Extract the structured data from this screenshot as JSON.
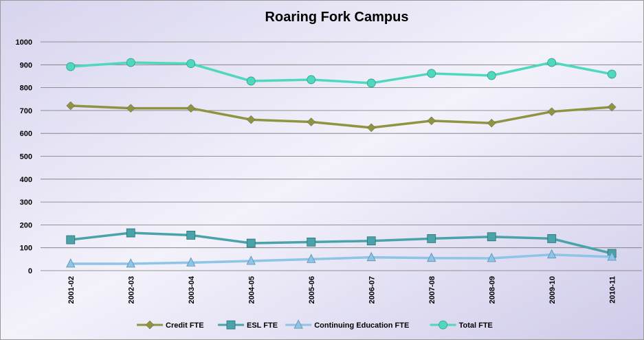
{
  "chart_data": {
    "type": "line",
    "title": "Roaring Fork Campus",
    "categories": [
      "2001-02",
      "2002-03",
      "2003-04",
      "2004-05",
      "2005-06",
      "2006-07",
      "2007-08",
      "2008-09",
      "2009-10",
      "2010-11"
    ],
    "series": [
      {
        "name": "Credit FTE",
        "color": "#8f9440",
        "marker": "diamond",
        "values": [
          721,
          710,
          710,
          660,
          650,
          625,
          655,
          645,
          695,
          715
        ]
      },
      {
        "name": "ESL FTE",
        "color": "#4aa3a8",
        "marker": "square",
        "values": [
          135,
          165,
          155,
          120,
          125,
          130,
          140,
          148,
          140,
          75
        ]
      },
      {
        "name": "Continuing Education FTE",
        "color": "#8ec4e6",
        "marker": "triangle",
        "values": [
          30,
          30,
          35,
          42,
          50,
          58,
          55,
          54,
          70,
          60
        ]
      },
      {
        "name": "Total FTE",
        "color": "#4fd8bd",
        "marker": "circle",
        "values": [
          892,
          910,
          905,
          829,
          835,
          820,
          862,
          853,
          910,
          859
        ]
      }
    ],
    "ylim": [
      0,
      1000
    ],
    "yticks": [
      0,
      100,
      200,
      300,
      400,
      500,
      600,
      700,
      800,
      900,
      1000
    ],
    "grid": true
  }
}
